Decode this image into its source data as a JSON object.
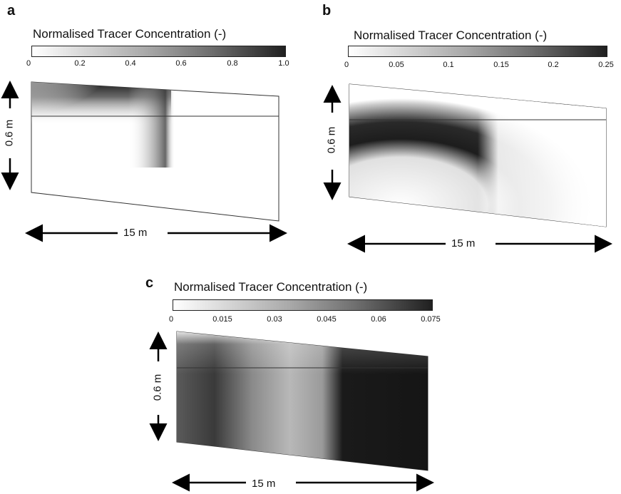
{
  "panels": [
    {
      "letter": "a",
      "colorbar_title": "Normalised Tracer Concentration (-)",
      "ticks": [
        "0",
        "0.2",
        "0.4",
        "0.6",
        "0.8",
        "1.0"
      ],
      "height_label": "0.6 m",
      "width_label": "15 m"
    },
    {
      "letter": "b",
      "colorbar_title": "Normalised Tracer Concentration (-)",
      "ticks": [
        "0",
        "0.05",
        "0.1",
        "0.15",
        "0.2",
        "0.25"
      ],
      "height_label": "0.6 m",
      "width_label": "15 m"
    },
    {
      "letter": "c",
      "colorbar_title": "Normalised Tracer Concentration (-)",
      "ticks": [
        "0",
        "0.015",
        "0.03",
        "0.045",
        "0.06",
        "0.075"
      ],
      "height_label": "0.6 m",
      "width_label": "15 m"
    }
  ],
  "colors": {
    "low": "#ffffff",
    "high": "#111111"
  }
}
